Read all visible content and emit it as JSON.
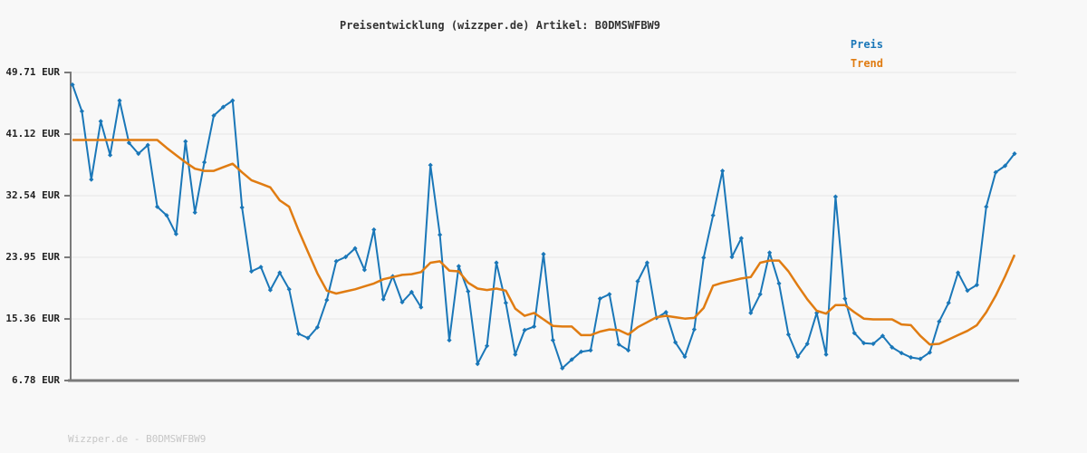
{
  "title": "Preisentwicklung (wizzper.de) Artikel: B0DMSWFBW9",
  "footer": "Wizzper.de - B0DMSWFBW9",
  "legend": [
    {
      "label": "Preis",
      "color": "#1a77b8"
    },
    {
      "label": "Trend",
      "color": "#e07c12"
    }
  ],
  "colors": {
    "price_line": "#1a77b8",
    "trend_line": "#e07c12",
    "grid": "#e6e6e6",
    "axis": "#7a7a7a",
    "title_text": "#333333",
    "tick_text": "#222222",
    "footer_text": "#c6c6c6",
    "background": "#f8f8f8"
  },
  "chart_data": {
    "type": "line",
    "title": "Preisentwicklung (wizzper.de) Artikel: B0DMSWFBW9",
    "currency": "EUR",
    "ylabel": "",
    "xlabel": "",
    "x_tick_labels": "none",
    "grid": "horizontal",
    "legend_position": "top-right",
    "ylim": [
      6.78,
      49.71
    ],
    "yticks": [
      49.71,
      41.12,
      32.54,
      23.95,
      15.36,
      6.78
    ],
    "ytick_labels": [
      "49.71 EUR",
      "41.12 EUR",
      "32.54 EUR",
      "23.95 EUR",
      "15.36 EUR",
      "6.78 EUR"
    ],
    "series": [
      {
        "name": "Preis",
        "color": "#1a77b8",
        "markers": true,
        "values": [
          48.0,
          44.3,
          34.8,
          42.9,
          38.2,
          45.8,
          39.9,
          38.4,
          39.6,
          31.0,
          29.8,
          27.2,
          40.1,
          30.2,
          37.2,
          43.7,
          44.9,
          45.8,
          30.9,
          22.0,
          22.6,
          19.4,
          21.8,
          19.5,
          13.3,
          12.7,
          14.2,
          18.0,
          23.4,
          24.0,
          25.2,
          22.2,
          27.8,
          18.1,
          21.3,
          17.7,
          19.1,
          17.0,
          36.8,
          27.1,
          12.4,
          22.7,
          19.2,
          9.1,
          11.6,
          23.2,
          17.6,
          10.4,
          13.8,
          14.3,
          24.4,
          12.4,
          8.5,
          9.7,
          10.8,
          11.0,
          18.2,
          18.8,
          11.8,
          11.0,
          20.6,
          23.2,
          15.5,
          16.3,
          12.1,
          10.1,
          13.9,
          23.9,
          29.8,
          36.0,
          24.0,
          26.6,
          16.2,
          18.8,
          24.6,
          20.3,
          13.2,
          10.1,
          11.9,
          16.2,
          10.4,
          32.4,
          18.2,
          13.4,
          12.0,
          11.9,
          13.0,
          11.4,
          10.6,
          10.0,
          9.8,
          10.7,
          15.0,
          17.6,
          21.8,
          19.3,
          20.1,
          31.0,
          35.8,
          36.7,
          38.4
        ]
      },
      {
        "name": "Trend",
        "color": "#e07c12",
        "markers": false,
        "values": [
          40.3,
          40.3,
          40.3,
          40.3,
          40.3,
          40.3,
          40.3,
          40.3,
          40.3,
          40.3,
          39.2,
          38.2,
          37.2,
          36.3,
          36.0,
          36.0,
          36.5,
          37.0,
          35.8,
          34.7,
          34.2,
          33.7,
          31.9,
          31.0,
          27.7,
          24.7,
          21.7,
          19.3,
          18.9,
          19.2,
          19.5,
          19.9,
          20.3,
          20.9,
          21.2,
          21.5,
          21.6,
          21.9,
          23.2,
          23.4,
          22.1,
          22.0,
          20.4,
          19.6,
          19.4,
          19.6,
          19.3,
          16.8,
          15.8,
          16.2,
          15.3,
          14.4,
          14.3,
          14.3,
          13.1,
          13.1,
          13.6,
          13.9,
          13.8,
          13.2,
          14.2,
          14.9,
          15.6,
          15.8,
          15.6,
          15.4,
          15.5,
          16.9,
          20.0,
          20.4,
          20.7,
          21.0,
          21.2,
          23.2,
          23.5,
          23.5,
          22.0,
          20.0,
          18.1,
          16.5,
          16.1,
          17.3,
          17.3,
          16.3,
          15.4,
          15.3,
          15.3,
          15.3,
          14.6,
          14.5,
          13.0,
          11.8,
          11.9,
          12.5,
          13.1,
          13.7,
          14.5,
          16.3,
          18.6,
          21.3,
          24.3
        ]
      }
    ]
  }
}
